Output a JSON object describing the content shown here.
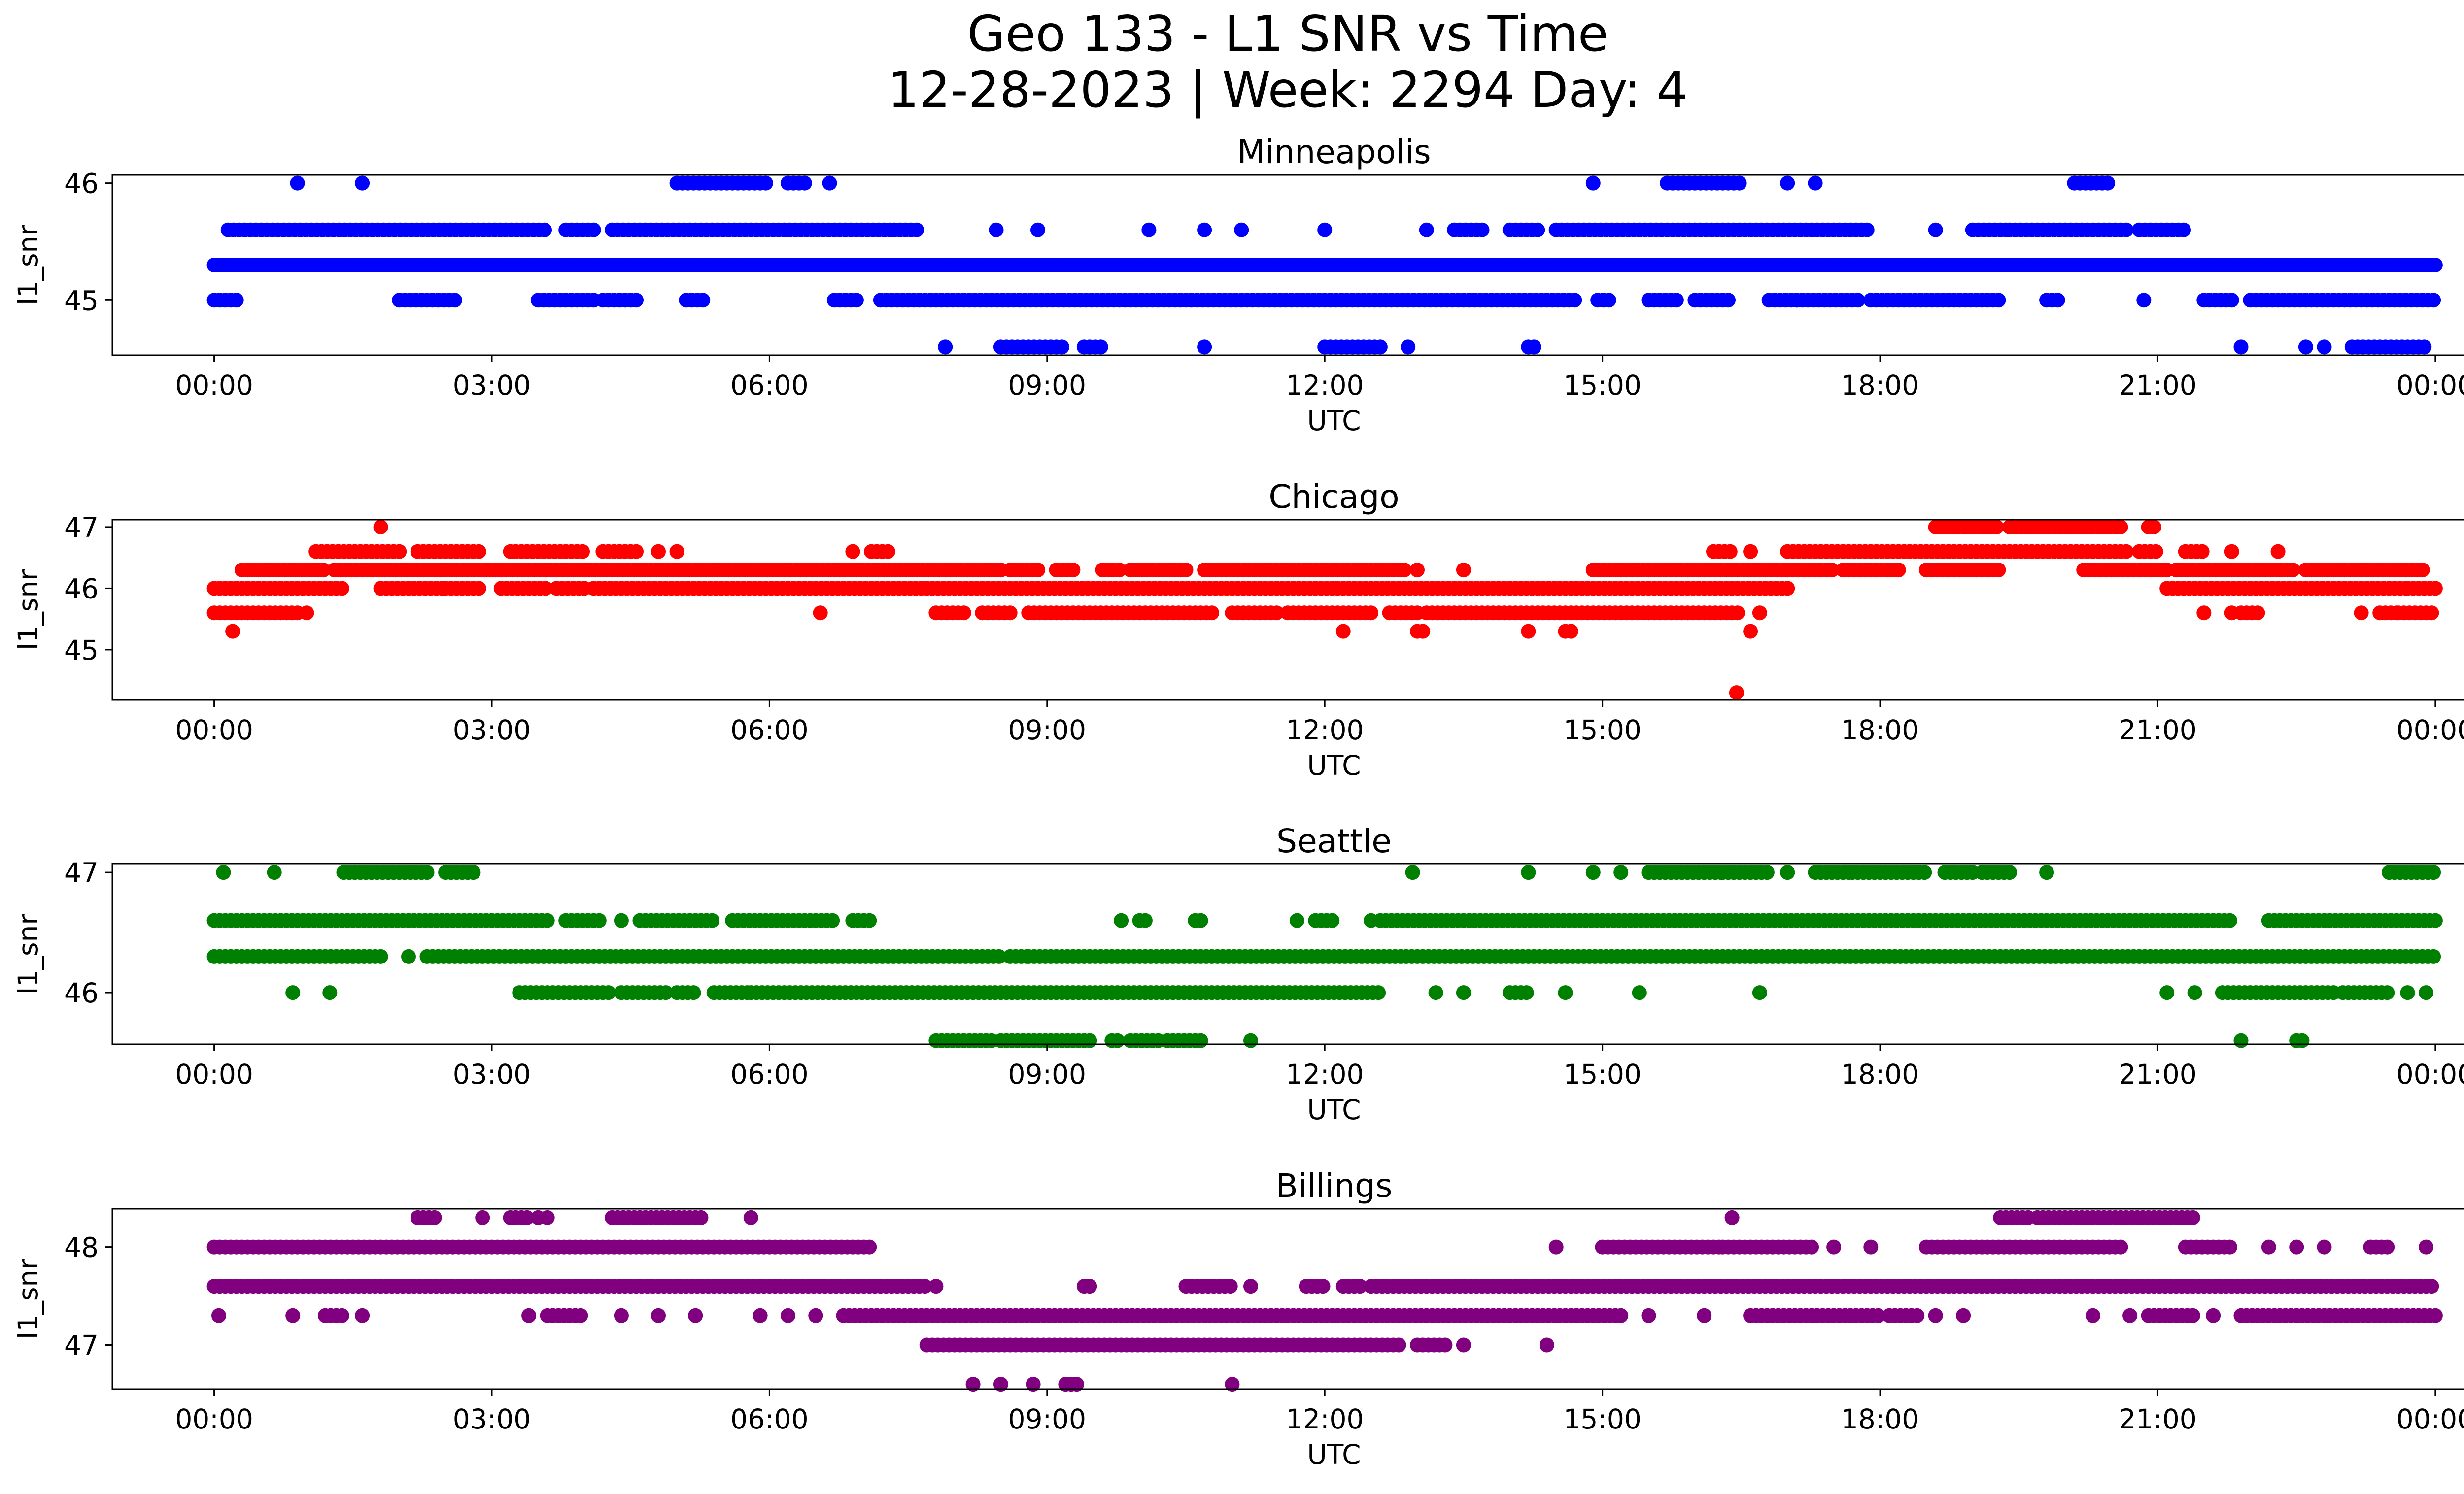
{
  "suptitle": {
    "line1": "Geo 133 - L1 SNR vs Time",
    "line2": "12-28-2023 | Week: 2294 Day: 4"
  },
  "chart_data": [
    {
      "type": "scatter",
      "title": "Minneapolis",
      "xlabel": "UTC",
      "ylabel": "l1_snr",
      "color": "#0000ff",
      "xlim_hours": [
        -1.1,
        25.3
      ],
      "ylim": [
        44.53,
        46.07
      ],
      "xticks": [
        "00:00",
        "03:00",
        "06:00",
        "09:00",
        "12:00",
        "15:00",
        "18:00",
        "21:00",
        "00:00"
      ],
      "yticks": [
        45,
        46
      ],
      "levels": [
        {
          "y": 45.0,
          "segments": [
            [
              0.0,
              0.25
            ],
            [
              2.0,
              2.6
            ],
            [
              3.5,
              4.1
            ],
            [
              4.2,
              4.6
            ],
            [
              5.1,
              5.3
            ],
            [
              6.7,
              6.95
            ],
            [
              7.2,
              14.7
            ],
            [
              14.95,
              15.1
            ],
            [
              15.5,
              15.8
            ],
            [
              16.0,
              16.4
            ],
            [
              16.8,
              17.1
            ],
            [
              17.1,
              17.8
            ],
            [
              17.9,
              19.3
            ],
            [
              19.8,
              19.95
            ],
            [
              20.85
            ],
            [
              21.5,
              21.8
            ],
            [
              22.0,
              24.0
            ]
          ]
        },
        {
          "y": 45.3,
          "segments": [
            [
              0.0,
              24.0
            ]
          ]
        },
        {
          "y": 45.6,
          "segments": [
            [
              0.15,
              3.6
            ],
            [
              3.8,
              4.1
            ],
            [
              4.3,
              7.3
            ],
            [
              7.35,
              7.6
            ],
            [
              8.45
            ],
            [
              8.9
            ],
            [
              10.1
            ],
            [
              10.7
            ],
            [
              11.1
            ],
            [
              12.0
            ],
            [
              13.1
            ],
            [
              13.4,
              13.7
            ],
            [
              14.0,
              14.3
            ],
            [
              14.5,
              17.9
            ],
            [
              18.6
            ],
            [
              19.0,
              19.4
            ],
            [
              19.4,
              20.7
            ],
            [
              20.8,
              21.3
            ]
          ]
        },
        {
          "y": 46.0,
          "segments": [
            [
              0.9
            ],
            [
              1.6
            ],
            [
              5.0,
              6.0
            ],
            [
              6.2,
              6.4
            ],
            [
              6.65
            ],
            [
              14.9
            ],
            [
              15.7,
              16.5
            ],
            [
              17.0
            ],
            [
              17.3
            ],
            [
              20.1,
              20.5
            ]
          ]
        },
        {
          "y": 44.6,
          "segments": [
            [
              7.9
            ],
            [
              8.5,
              9.2
            ],
            [
              9.4,
              9.6
            ],
            [
              10.7
            ],
            [
              12.0,
              12.6
            ],
            [
              12.9
            ],
            [
              14.2,
              14.3
            ],
            [
              21.9
            ],
            [
              22.6
            ],
            [
              22.8
            ],
            [
              23.1,
              23.9
            ]
          ]
        }
      ]
    },
    {
      "type": "scatter",
      "title": "Chicago",
      "xlabel": "UTC",
      "ylabel": "l1_snr",
      "color": "#ff0000",
      "xlim_hours": [
        -1.1,
        25.3
      ],
      "ylim": [
        44.18,
        47.12
      ],
      "xticks": [
        "00:00",
        "03:00",
        "06:00",
        "09:00",
        "12:00",
        "15:00",
        "18:00",
        "21:00",
        "00:00"
      ],
      "yticks": [
        45,
        46,
        47
      ],
      "levels": [
        {
          "y": 45.6,
          "segments": [
            [
              0.0,
              0.9
            ],
            [
              1.0
            ],
            [
              6.55
            ],
            [
              7.8,
              8.1
            ],
            [
              8.3,
              8.6
            ],
            [
              8.8,
              10.8
            ],
            [
              11.0,
              11.5
            ],
            [
              11.6,
              12.5
            ],
            [
              12.7,
              13.0
            ],
            [
              13.1,
              16.5
            ],
            [
              16.7
            ],
            [
              21.5
            ],
            [
              21.8
            ],
            [
              21.9,
              22.1
            ],
            [
              23.2
            ],
            [
              23.4,
              23.6
            ],
            [
              23.6,
              24.0
            ]
          ]
        },
        {
          "y": 46.0,
          "segments": [
            [
              0.0,
              1.4
            ],
            [
              1.8,
              2.5
            ],
            [
              2.5,
              2.9
            ],
            [
              3.1,
              3.6
            ],
            [
              3.7,
              4.0
            ],
            [
              4.1,
              4.7
            ],
            [
              4.7,
              16.4
            ],
            [
              16.4,
              17.0
            ],
            [
              21.1,
              22.0
            ],
            [
              22.0,
              23.7
            ],
            [
              23.7,
              24.0
            ]
          ]
        },
        {
          "y": 46.3,
          "segments": [
            [
              0.3,
              0.7
            ],
            [
              0.7,
              1.2
            ],
            [
              1.3,
              8.5
            ],
            [
              8.6,
              8.9
            ],
            [
              9.1,
              9.3
            ],
            [
              9.6,
              9.8
            ],
            [
              9.9,
              10.5
            ],
            [
              10.7,
              12.9
            ],
            [
              13.0
            ],
            [
              13.5
            ],
            [
              14.9,
              15.2
            ],
            [
              15.2,
              17.0
            ],
            [
              17.0,
              17.5
            ],
            [
              17.6,
              18.2
            ],
            [
              18.5,
              19.3
            ],
            [
              20.2,
              21.1
            ],
            [
              21.2,
              22.5
            ],
            [
              22.6,
              23.2
            ],
            [
              23.2,
              23.9
            ]
          ]
        },
        {
          "y": 46.6,
          "segments": [
            [
              1.1,
              2.0
            ],
            [
              2.2,
              2.9
            ],
            [
              3.2,
              4.0
            ],
            [
              4.2,
              4.6
            ],
            [
              4.8
            ],
            [
              5.0
            ],
            [
              6.9
            ],
            [
              7.1,
              7.3
            ],
            [
              16.2,
              16.4
            ],
            [
              16.6
            ],
            [
              17.0,
              20.7
            ],
            [
              20.8,
              21.0
            ],
            [
              21.3,
              21.5
            ],
            [
              21.8
            ],
            [
              22.3
            ]
          ]
        },
        {
          "y": 47.0,
          "segments": [
            [
              1.8
            ],
            [
              18.6,
              19.3
            ],
            [
              19.4,
              19.7
            ],
            [
              19.7,
              20.6
            ],
            [
              20.9,
              21.0
            ]
          ]
        },
        {
          "y": 45.3,
          "segments": [
            [
              0.2
            ],
            [
              12.2
            ],
            [
              13.0,
              13.1
            ],
            [
              14.2
            ],
            [
              14.6,
              14.7
            ],
            [
              16.6
            ]
          ]
        },
        {
          "y": 44.3,
          "segments": [
            [
              16.45
            ]
          ]
        }
      ]
    },
    {
      "type": "scatter",
      "title": "Seattle",
      "xlabel": "UTC",
      "ylabel": "l1_snr",
      "color": "#008000",
      "xlim_hours": [
        -1.1,
        25.3
      ],
      "ylim": [
        45.57,
        47.07
      ],
      "xticks": [
        "00:00",
        "03:00",
        "06:00",
        "09:00",
        "12:00",
        "15:00",
        "18:00",
        "21:00",
        "00:00"
      ],
      "yticks": [
        46,
        47
      ],
      "levels": [
        {
          "y": 45.6,
          "segments": [
            [
              7.8,
              8.4
            ],
            [
              8.5,
              9.5
            ],
            [
              9.7,
              9.8
            ],
            [
              9.9,
              10.2
            ],
            [
              10.3,
              10.7
            ],
            [
              11.2
            ],
            [
              21.9
            ],
            [
              22.5,
              22.6
            ]
          ]
        },
        {
          "y": 46.0,
          "segments": [
            [
              0.85
            ],
            [
              1.25
            ],
            [
              3.3,
              4.3
            ],
            [
              4.4,
              4.9
            ],
            [
              5.0,
              5.2
            ],
            [
              5.4,
              5.8
            ],
            [
              5.8,
              12.6
            ],
            [
              13.2
            ],
            [
              13.5
            ],
            [
              14.0,
              14.2
            ],
            [
              14.6
            ],
            [
              15.4
            ],
            [
              16.7
            ],
            [
              21.1
            ],
            [
              21.4
            ],
            [
              21.7,
              22.9
            ],
            [
              23.0,
              23.5
            ],
            [
              23.7
            ],
            [
              23.9
            ]
          ]
        },
        {
          "y": 46.3,
          "segments": [
            [
              0.0,
              1.8
            ],
            [
              2.1
            ],
            [
              2.3,
              8.5
            ],
            [
              8.6,
              8.8
            ],
            [
              8.8,
              24.0
            ]
          ]
        },
        {
          "y": 46.6,
          "segments": [
            [
              0.0,
              3.6
            ],
            [
              3.8,
              4.2
            ],
            [
              4.4
            ],
            [
              4.6,
              5.4
            ],
            [
              5.6,
              6.7
            ],
            [
              6.9,
              7.1
            ],
            [
              9.8
            ],
            [
              10.0,
              10.1
            ],
            [
              10.6,
              10.7
            ],
            [
              11.7
            ],
            [
              11.9,
              12.1
            ],
            [
              12.5
            ],
            [
              12.6,
              21.8
            ],
            [
              22.2,
              24.0
            ]
          ]
        },
        {
          "y": 47.0,
          "segments": [
            [
              0.1
            ],
            [
              0.65
            ],
            [
              1.4,
              2.3
            ],
            [
              2.5,
              2.8
            ],
            [
              12.95
            ],
            [
              14.2
            ],
            [
              14.9
            ],
            [
              15.2
            ],
            [
              15.5,
              16.3
            ],
            [
              16.3,
              16.8
            ],
            [
              17.0
            ],
            [
              17.3,
              17.7
            ],
            [
              17.7,
              18.5
            ],
            [
              18.7,
              19.0
            ],
            [
              19.1,
              19.4
            ],
            [
              19.8
            ],
            [
              23.5,
              24.0
            ]
          ]
        }
      ]
    },
    {
      "type": "scatter",
      "title": "Billings",
      "xlabel": "UTC",
      "ylabel": "l1_snr",
      "color": "#800080",
      "xlim_hours": [
        -1.1,
        25.3
      ],
      "ylim": [
        46.55,
        48.39
      ],
      "xticks": [
        "00:00",
        "03:00",
        "06:00",
        "09:00",
        "12:00",
        "15:00",
        "18:00",
        "21:00",
        "00:00"
      ],
      "yticks": [
        47,
        48
      ],
      "levels": [
        {
          "y": 47.0,
          "segments": [
            [
              7.7,
              12.8
            ],
            [
              13.0,
              13.3
            ],
            [
              13.5
            ],
            [
              14.4
            ]
          ]
        },
        {
          "y": 47.3,
          "segments": [
            [
              0.05
            ],
            [
              0.85
            ],
            [
              1.2,
              1.4
            ],
            [
              1.6
            ],
            [
              3.4
            ],
            [
              3.6,
              4.0
            ],
            [
              4.4
            ],
            [
              4.8
            ],
            [
              5.2
            ],
            [
              5.9
            ],
            [
              6.2
            ],
            [
              6.5
            ],
            [
              6.8,
              15.2
            ],
            [
              15.5
            ],
            [
              16.1
            ],
            [
              16.6,
              18.0
            ],
            [
              18.1,
              18.4
            ],
            [
              18.6
            ],
            [
              18.9
            ],
            [
              20.3
            ],
            [
              20.7
            ],
            [
              20.9,
              21.4
            ],
            [
              21.6
            ],
            [
              21.9,
              24.0
            ]
          ]
        },
        {
          "y": 47.6,
          "segments": [
            [
              0.0,
              7.7
            ],
            [
              7.8
            ],
            [
              9.4,
              9.5
            ],
            [
              10.5,
              11.0
            ],
            [
              11.2
            ],
            [
              11.8,
              12.0
            ],
            [
              12.2,
              12.4
            ],
            [
              12.5,
              24.0
            ]
          ]
        },
        {
          "y": 48.0,
          "segments": [
            [
              0.0,
              7.1
            ],
            [
              14.5
            ],
            [
              15.0,
              16.3
            ],
            [
              16.3,
              17.3
            ],
            [
              17.5
            ],
            [
              17.9
            ],
            [
              18.5,
              20.6
            ],
            [
              21.3,
              21.8
            ],
            [
              22.2
            ],
            [
              22.5
            ],
            [
              22.8
            ],
            [
              23.3,
              23.5
            ],
            [
              23.9
            ]
          ]
        },
        {
          "y": 48.3,
          "segments": [
            [
              2.2,
              2.4
            ],
            [
              2.9
            ],
            [
              3.2,
              3.4
            ],
            [
              3.5
            ],
            [
              3.6
            ],
            [
              4.3,
              5.3
            ],
            [
              5.8
            ],
            [
              16.4
            ],
            [
              19.3,
              19.6
            ],
            [
              19.7,
              21.4
            ]
          ]
        },
        {
          "y": 46.6,
          "segments": [
            [
              8.2
            ],
            [
              8.5
            ],
            [
              8.85
            ],
            [
              9.2,
              9.35
            ],
            [
              11.0
            ]
          ]
        }
      ]
    }
  ]
}
